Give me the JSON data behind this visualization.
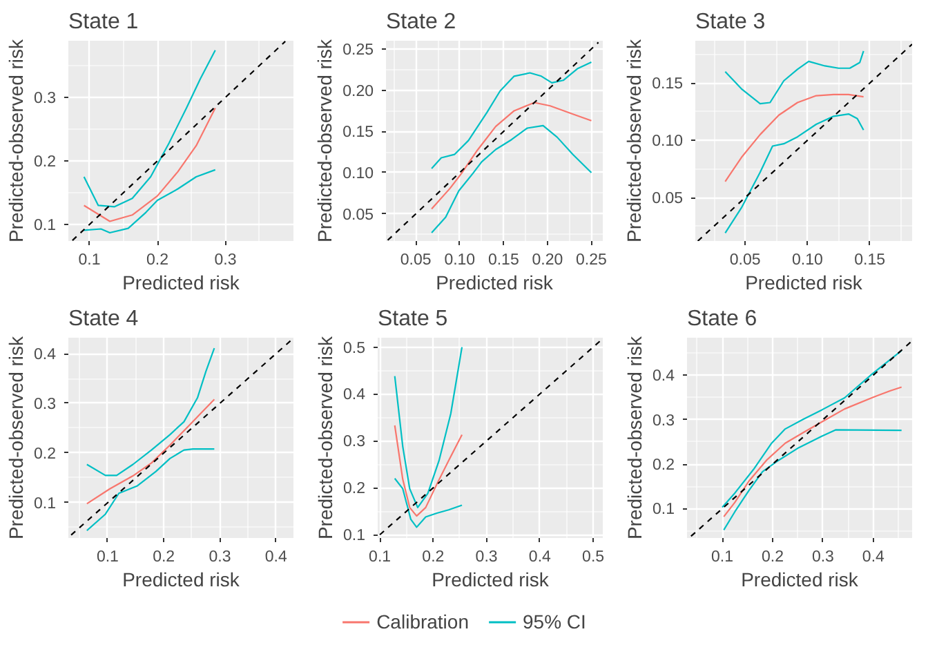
{
  "chart_data": [
    {
      "type": "line",
      "title": "State 1",
      "xlabel": "Predicted risk",
      "ylabel": "Predicted-observed risk",
      "xlim": [
        0.069,
        0.4
      ],
      "ylim": [
        0.074,
        0.389
      ],
      "xticks": [
        0.1,
        0.2,
        0.3
      ],
      "yticks": [
        0.1,
        0.2,
        0.3
      ],
      "grid": true,
      "series": [
        {
          "color": "#f8766d",
          "x": [
            0.092,
            0.13,
            0.163,
            0.2,
            0.23,
            0.257,
            0.285
          ],
          "values": [
            0.13,
            0.105,
            0.115,
            0.145,
            0.183,
            0.224,
            0.283
          ]
        },
        {
          "color": "#00bfc4",
          "x": [
            0.092,
            0.113,
            0.137,
            0.163,
            0.19,
            0.217,
            0.243,
            0.263,
            0.285
          ],
          "values": [
            0.175,
            0.13,
            0.128,
            0.141,
            0.175,
            0.228,
            0.284,
            0.329,
            0.374
          ]
        },
        {
          "color": "#00bfc4",
          "x": [
            0.092,
            0.117,
            0.13,
            0.157,
            0.183,
            0.2,
            0.23,
            0.257,
            0.285
          ],
          "values": [
            0.091,
            0.093,
            0.087,
            0.094,
            0.119,
            0.138,
            0.156,
            0.175,
            0.186
          ]
        },
        {
          "type": "line",
          "color": "#000000",
          "line_style": "dashed",
          "x": [
            0.075,
            0.388
          ],
          "values": [
            0.075,
            0.388
          ]
        }
      ]
    },
    {
      "type": "line",
      "title": "State 2",
      "xlabel": "Predicted risk",
      "ylabel": "Predicted-observed risk",
      "xlim": [
        0.016,
        0.263
      ],
      "ylim": [
        0.017,
        0.26
      ],
      "xticks": [
        {
          "value": 0.05,
          "label": "0.05"
        },
        {
          "value": 0.1,
          "label": "0.10"
        },
        {
          "value": 0.15,
          "label": "0.15"
        },
        {
          "value": 0.2,
          "label": "0.20"
        },
        {
          "value": 0.25,
          "label": "0.25"
        }
      ],
      "yticks": [
        {
          "value": 0.05,
          "label": "0.05"
        },
        {
          "value": 0.1,
          "label": "0.10"
        },
        {
          "value": 0.15,
          "label": "0.15"
        },
        {
          "value": 0.2,
          "label": "0.20"
        },
        {
          "value": 0.25,
          "label": "0.25"
        }
      ],
      "grid": true,
      "series": [
        {
          "color": "#f8766d",
          "x": [
            0.068,
            0.089,
            0.102,
            0.12,
            0.141,
            0.162,
            0.185,
            0.203,
            0.229,
            0.25
          ],
          "values": [
            0.056,
            0.081,
            0.099,
            0.127,
            0.156,
            0.175,
            0.185,
            0.181,
            0.171,
            0.163
          ]
        },
        {
          "color": "#00bfc4",
          "x": [
            0.068,
            0.079,
            0.094,
            0.11,
            0.131,
            0.146,
            0.162,
            0.18,
            0.193,
            0.205,
            0.218,
            0.234,
            0.25
          ],
          "values": [
            0.105,
            0.118,
            0.122,
            0.139,
            0.173,
            0.199,
            0.217,
            0.221,
            0.217,
            0.209,
            0.212,
            0.226,
            0.234
          ]
        },
        {
          "color": "#00bfc4",
          "x": [
            0.068,
            0.084,
            0.099,
            0.115,
            0.125,
            0.141,
            0.159,
            0.177,
            0.195,
            0.211,
            0.229,
            0.25
          ],
          "values": [
            0.027,
            0.046,
            0.078,
            0.099,
            0.113,
            0.128,
            0.14,
            0.154,
            0.157,
            0.143,
            0.122,
            0.1
          ]
        },
        {
          "type": "line",
          "color": "#000000",
          "line_style": "dashed",
          "x": [
            0.018,
            0.258
          ],
          "values": [
            0.018,
            0.258
          ]
        }
      ]
    },
    {
      "type": "line",
      "title": "State 3",
      "xlabel": "Predicted risk",
      "ylabel": "Predicted-observed risk",
      "xlim": [
        0.01,
        0.184
      ],
      "ylim": [
        0.012,
        0.187
      ],
      "xticks": [
        {
          "value": 0.05,
          "label": "0.05"
        },
        {
          "value": 0.1,
          "label": "0.10"
        },
        {
          "value": 0.15,
          "label": "0.15"
        }
      ],
      "yticks": [
        {
          "value": 0.05,
          "label": "0.05"
        },
        {
          "value": 0.1,
          "label": "0.10"
        },
        {
          "value": 0.15,
          "label": "0.15"
        }
      ],
      "grid": true,
      "series": [
        {
          "color": "#f8766d",
          "x": [
            0.034,
            0.047,
            0.062,
            0.077,
            0.092,
            0.107,
            0.121,
            0.133,
            0.145
          ],
          "values": [
            0.064,
            0.085,
            0.105,
            0.122,
            0.133,
            0.139,
            0.14,
            0.14,
            0.138
          ]
        },
        {
          "color": "#00bfc4",
          "x": [
            0.034,
            0.047,
            0.062,
            0.07,
            0.081,
            0.092,
            0.101,
            0.114,
            0.125,
            0.134,
            0.142,
            0.145
          ],
          "values": [
            0.16,
            0.145,
            0.132,
            0.133,
            0.152,
            0.162,
            0.169,
            0.165,
            0.163,
            0.163,
            0.168,
            0.178
          ]
        },
        {
          "color": "#00bfc4",
          "x": [
            0.034,
            0.047,
            0.062,
            0.072,
            0.081,
            0.092,
            0.107,
            0.121,
            0.133,
            0.14,
            0.145
          ],
          "values": [
            0.019,
            0.041,
            0.072,
            0.095,
            0.097,
            0.103,
            0.114,
            0.121,
            0.123,
            0.119,
            0.109
          ]
        },
        {
          "type": "line",
          "color": "#000000",
          "line_style": "dashed",
          "x": [
            0.012,
            0.184
          ],
          "values": [
            0.012,
            0.184
          ]
        }
      ]
    },
    {
      "type": "line",
      "title": "State 4",
      "xlabel": "Predicted risk",
      "ylabel": "Predicted-observed risk",
      "xlim": [
        0.03,
        0.431
      ],
      "ylim": [
        0.029,
        0.432
      ],
      "xticks": [
        0.1,
        0.2,
        0.3,
        0.4
      ],
      "yticks": [
        0.1,
        0.2,
        0.3,
        0.4
      ],
      "grid": true,
      "series": [
        {
          "color": "#f8766d",
          "x": [
            0.063,
            0.104,
            0.145,
            0.178,
            0.211,
            0.244,
            0.29
          ],
          "values": [
            0.098,
            0.128,
            0.154,
            0.18,
            0.216,
            0.254,
            0.308
          ]
        },
        {
          "color": "#00bfc4",
          "x": [
            0.063,
            0.096,
            0.116,
            0.145,
            0.178,
            0.211,
            0.236,
            0.26,
            0.275,
            0.29
          ],
          "values": [
            0.177,
            0.155,
            0.155,
            0.177,
            0.206,
            0.237,
            0.263,
            0.311,
            0.364,
            0.411
          ]
        },
        {
          "color": "#00bfc4",
          "x": [
            0.063,
            0.096,
            0.12,
            0.153,
            0.186,
            0.211,
            0.236,
            0.252,
            0.29
          ],
          "values": [
            0.044,
            0.077,
            0.119,
            0.134,
            0.163,
            0.189,
            0.206,
            0.208,
            0.208
          ]
        },
        {
          "type": "line",
          "color": "#000000",
          "line_style": "dashed",
          "x": [
            0.035,
            0.431
          ],
          "values": [
            0.035,
            0.431
          ]
        }
      ]
    },
    {
      "type": "line",
      "title": "State 5",
      "xlabel": "Predicted risk",
      "ylabel": "Predicted-observed risk",
      "xlim": [
        0.096,
        0.518
      ],
      "ylim": [
        0.093,
        0.52
      ],
      "xticks": [
        0.1,
        0.2,
        0.3,
        0.4,
        0.5
      ],
      "yticks": [
        0.1,
        0.2,
        0.3,
        0.4,
        0.5
      ],
      "grid": true,
      "legend": "bottom",
      "series": [
        {
          "name": "Calibration",
          "color": "#f8766d",
          "x": [
            0.128,
            0.143,
            0.156,
            0.169,
            0.186,
            0.207,
            0.229,
            0.254
          ],
          "values": [
            0.333,
            0.218,
            0.158,
            0.14,
            0.158,
            0.208,
            0.258,
            0.313
          ]
        },
        {
          "name": "95% CI",
          "color": "#00bfc4",
          "x": [
            0.128,
            0.143,
            0.156,
            0.171,
            0.19,
            0.211,
            0.233,
            0.254
          ],
          "values": [
            0.438,
            0.288,
            0.198,
            0.158,
            0.188,
            0.258,
            0.358,
            0.5
          ]
        },
        {
          "color": "#00bfc4",
          "x": [
            0.128,
            0.143,
            0.158,
            0.169,
            0.186,
            0.207,
            0.229,
            0.254
          ],
          "values": [
            0.22,
            0.198,
            0.133,
            0.116,
            0.138,
            0.146,
            0.153,
            0.163
          ]
        },
        {
          "type": "line",
          "color": "#000000",
          "line_style": "dashed",
          "x": [
            0.1,
            0.518
          ],
          "values": [
            0.1,
            0.518
          ]
        }
      ]
    },
    {
      "type": "line",
      "title": "State 6",
      "xlabel": "Predicted risk",
      "ylabel": "Predicted-observed risk",
      "xlim": [
        0.03,
        0.477
      ],
      "ylim": [
        0.034,
        0.484
      ],
      "xticks": [
        0.1,
        0.2,
        0.3,
        0.4
      ],
      "yticks": [
        0.1,
        0.2,
        0.3,
        0.4
      ],
      "grid": true,
      "series": [
        {
          "color": "#f8766d",
          "x": [
            0.103,
            0.125,
            0.153,
            0.189,
            0.225,
            0.261,
            0.298,
            0.343,
            0.397,
            0.434,
            0.456
          ],
          "values": [
            0.082,
            0.114,
            0.162,
            0.21,
            0.247,
            0.271,
            0.295,
            0.324,
            0.349,
            0.365,
            0.373
          ]
        },
        {
          "color": "#00bfc4",
          "x": [
            0.1,
            0.125,
            0.162,
            0.198,
            0.225,
            0.261,
            0.298,
            0.343,
            0.397,
            0.456
          ],
          "values": [
            0.103,
            0.135,
            0.188,
            0.247,
            0.279,
            0.301,
            0.322,
            0.349,
            0.402,
            0.455
          ]
        },
        {
          "color": "#00bfc4",
          "x": [
            0.103,
            0.125,
            0.153,
            0.18,
            0.207,
            0.252,
            0.298,
            0.325,
            0.456
          ],
          "values": [
            0.052,
            0.093,
            0.141,
            0.183,
            0.205,
            0.237,
            0.263,
            0.277,
            0.276
          ]
        },
        {
          "type": "line",
          "color": "#000000",
          "line_style": "dashed",
          "x": [
            0.038,
            0.477
          ],
          "values": [
            0.038,
            0.477
          ]
        }
      ]
    }
  ]
}
